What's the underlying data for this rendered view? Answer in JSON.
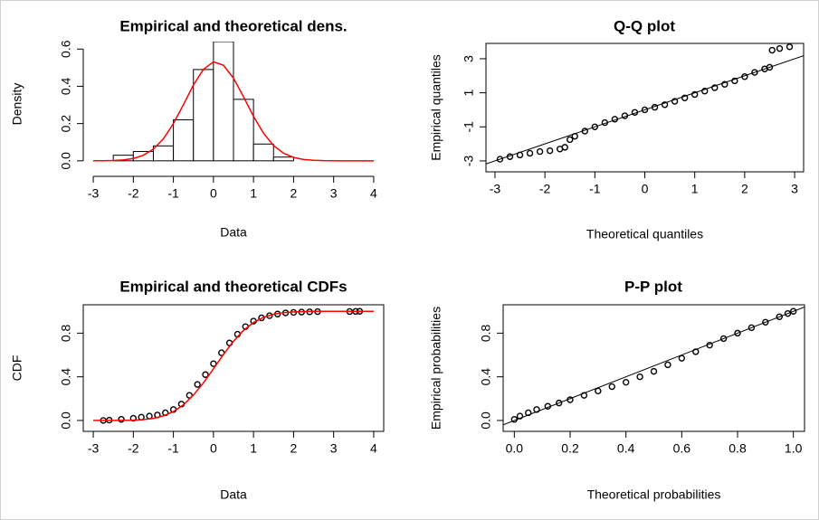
{
  "chart_data": [
    {
      "type": "histogram",
      "title": "Empirical and theoretical dens.",
      "x_label": "Data",
      "y_label": "Density",
      "bins": [
        -2.5,
        -2,
        -1.5,
        -1,
        -0.5,
        0,
        0.5,
        1,
        1.5,
        2
      ],
      "values": [
        0.03,
        0.05,
        0.08,
        0.22,
        0.49,
        0.64,
        0.33,
        0.09,
        0.02
      ],
      "color": "#ffffff",
      "edgecolor": "#000000",
      "curve": {
        "color": "#ff0000",
        "x": [
          -3,
          -2.75,
          -2.5,
          -2.25,
          -2,
          -1.75,
          -1.5,
          -1.25,
          -1,
          -0.75,
          -0.5,
          -0.25,
          0,
          0.25,
          0.5,
          0.75,
          1,
          1.25,
          1.5,
          1.75,
          2,
          2.25,
          2.5,
          2.75,
          3,
          3.25,
          3.5,
          3.75,
          4
        ],
        "values": [
          0.0001,
          0.0005,
          0.0016,
          0.0048,
          0.0127,
          0.0299,
          0.063,
          0.118,
          0.2,
          0.301,
          0.407,
          0.491,
          0.531,
          0.513,
          0.444,
          0.344,
          0.239,
          0.148,
          0.082,
          0.041,
          0.018,
          0.0072,
          0.0026,
          0.0008,
          0.0002,
          0,
          0,
          0,
          0
        ]
      },
      "xlim": [
        -3.25,
        4.25
      ],
      "ylim": [
        -0.03,
        0.64
      ],
      "xticks": [
        -3,
        -2,
        -1,
        0,
        1,
        2,
        3,
        4
      ],
      "yticks": [
        {
          "value": 0,
          "label": "0.0"
        },
        {
          "value": 0.2,
          "label": "0.2"
        },
        {
          "value": 0.4,
          "label": "0.4"
        },
        {
          "value": 0.6,
          "label": "0.6"
        }
      ]
    },
    {
      "type": "scatter",
      "title": "Q-Q plot",
      "x_label": "Theoretical quantiles",
      "y_label": "Empirical quantiles",
      "x": [
        -2.9,
        -2.7,
        -2.5,
        -2.3,
        -2.1,
        -1.9,
        -1.7,
        -1.6,
        -1.5,
        -1.4,
        -1.2,
        -1.0,
        -0.8,
        -0.6,
        -0.4,
        -0.2,
        0,
        0.2,
        0.4,
        0.6,
        0.8,
        1.0,
        1.2,
        1.4,
        1.6,
        1.8,
        2.0,
        2.2,
        2.4,
        2.5,
        2.55,
        2.7,
        2.9
      ],
      "values": [
        -2.9,
        -2.75,
        -2.65,
        -2.55,
        -2.45,
        -2.4,
        -2.3,
        -2.2,
        -1.75,
        -1.55,
        -1.25,
        -1.0,
        -0.75,
        -0.55,
        -0.35,
        -0.15,
        0.0,
        0.15,
        0.3,
        0.5,
        0.7,
        0.9,
        1.1,
        1.3,
        1.5,
        1.7,
        1.95,
        2.2,
        2.4,
        2.5,
        3.5,
        3.6,
        3.7
      ],
      "color": "#000000",
      "diagonal": true,
      "xlim": [
        -3.18,
        3.18
      ],
      "ylim": [
        -3.64,
        3.9
      ],
      "xticks": [
        -3,
        -2,
        -1,
        0,
        1,
        2,
        3
      ],
      "yticks": [
        -3,
        -1,
        1,
        3
      ]
    },
    {
      "type": "scatter",
      "title": "Empirical and theoretical CDFs",
      "x_label": "Data",
      "y_label": "CDF",
      "x": [
        -2.75,
        -2.6,
        -2.3,
        -2.0,
        -1.8,
        -1.6,
        -1.4,
        -1.2,
        -1.0,
        -0.8,
        -0.6,
        -0.4,
        -0.2,
        0,
        0.2,
        0.4,
        0.6,
        0.8,
        1.0,
        1.2,
        1.4,
        1.6,
        1.8,
        2.0,
        2.2,
        2.4,
        2.6,
        3.4,
        3.55,
        3.65
      ],
      "values": [
        0.0,
        0.003,
        0.01,
        0.02,
        0.03,
        0.04,
        0.05,
        0.07,
        0.1,
        0.15,
        0.23,
        0.33,
        0.42,
        0.52,
        0.62,
        0.71,
        0.79,
        0.86,
        0.91,
        0.94,
        0.96,
        0.975,
        0.985,
        0.99,
        0.993,
        0.995,
        0.997,
        0.998,
        0.999,
        1.0
      ],
      "color": "#000000",
      "curve": {
        "color": "#ff0000",
        "x": [
          -3,
          -2.5,
          -2,
          -1.75,
          -1.5,
          -1.25,
          -1,
          -0.75,
          -0.5,
          -0.25,
          0,
          0.25,
          0.5,
          0.75,
          1,
          1.25,
          1.5,
          1.75,
          2,
          2.5,
          3,
          3.5,
          4
        ],
        "values": [
          0,
          0.0003,
          0.003,
          0.008,
          0.019,
          0.042,
          0.081,
          0.143,
          0.232,
          0.345,
          0.473,
          0.605,
          0.726,
          0.825,
          0.897,
          0.945,
          0.973,
          0.988,
          0.995,
          0.9995,
          1,
          1,
          1
        ]
      },
      "xlim": [
        -3.25,
        4.25
      ],
      "ylim": [
        -0.1,
        1.06
      ],
      "xticks": [
        -3,
        -2,
        -1,
        0,
        1,
        2,
        3,
        4
      ],
      "yticks": [
        {
          "value": 0,
          "label": "0.0"
        },
        {
          "value": 0.4,
          "label": "0.4"
        },
        {
          "value": 0.8,
          "label": "0.8"
        }
      ]
    },
    {
      "type": "scatter",
      "title": "P-P plot",
      "x_label": "Theoretical probabilities",
      "y_label": "Empirical probabilities",
      "x": [
        0.0,
        0.02,
        0.05,
        0.08,
        0.12,
        0.16,
        0.2,
        0.25,
        0.3,
        0.35,
        0.4,
        0.45,
        0.5,
        0.55,
        0.6,
        0.65,
        0.7,
        0.75,
        0.8,
        0.85,
        0.9,
        0.95,
        0.98,
        1.0
      ],
      "values": [
        0.01,
        0.04,
        0.07,
        0.1,
        0.13,
        0.16,
        0.19,
        0.23,
        0.27,
        0.31,
        0.35,
        0.4,
        0.45,
        0.51,
        0.57,
        0.63,
        0.69,
        0.75,
        0.8,
        0.85,
        0.9,
        0.95,
        0.98,
        1.0
      ],
      "color": "#000000",
      "diagonal": true,
      "xlim": [
        -0.04,
        1.04
      ],
      "ylim": [
        -0.1,
        1.06
      ],
      "xticks": [
        {
          "value": 0,
          "label": "0.0"
        },
        {
          "value": 0.2,
          "label": "0.2"
        },
        {
          "value": 0.4,
          "label": "0.4"
        },
        {
          "value": 0.6,
          "label": "0.6"
        },
        {
          "value": 0.8,
          "label": "0.8"
        },
        {
          "value": 1,
          "label": "1.0"
        }
      ],
      "yticks": [
        {
          "value": 0,
          "label": "0.0"
        },
        {
          "value": 0.4,
          "label": "0.4"
        },
        {
          "value": 0.8,
          "label": "0.8"
        }
      ]
    }
  ]
}
